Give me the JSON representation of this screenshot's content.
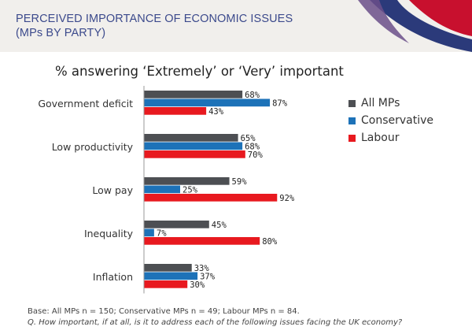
{
  "header": {
    "title_line1": "PERCEIVED IMPORTANCE OF ECONOMIC ISSUES",
    "title_line2": "(MPs BY PARTY)"
  },
  "colors": {
    "all_mps": "#4d4f53",
    "conservative": "#1d72b8",
    "labour": "#e8191f",
    "header_band": "#f1efec",
    "title_text": "#3c4a8c",
    "deco_navy": "#2b3a7a",
    "deco_red": "#c8102e",
    "deco_purple": "#6b4f8a"
  },
  "chart_data": {
    "type": "bar",
    "orientation": "horizontal",
    "title": "% answering ‘Extremely’ or ‘Very’ important",
    "categories": [
      "Government deficit",
      "Low productivity",
      "Low pay",
      "Inequality",
      "Inflation"
    ],
    "series": [
      {
        "name": "All MPs",
        "values": [
          68,
          65,
          59,
          45,
          33
        ]
      },
      {
        "name": "Conservative",
        "values": [
          87,
          68,
          25,
          7,
          37
        ]
      },
      {
        "name": "Labour",
        "values": [
          43,
          70,
          92,
          80,
          30
        ]
      }
    ],
    "value_suffix": "%",
    "xlim": [
      0,
      100
    ],
    "grid": false,
    "legend_position": "right"
  },
  "footer": {
    "base": "Base: All MPs n = 150; Conservative MPs n = 49; Labour MPs n = 84.",
    "question": "Q. How important, if at all, is it to address each of the following issues facing the UK economy?"
  }
}
